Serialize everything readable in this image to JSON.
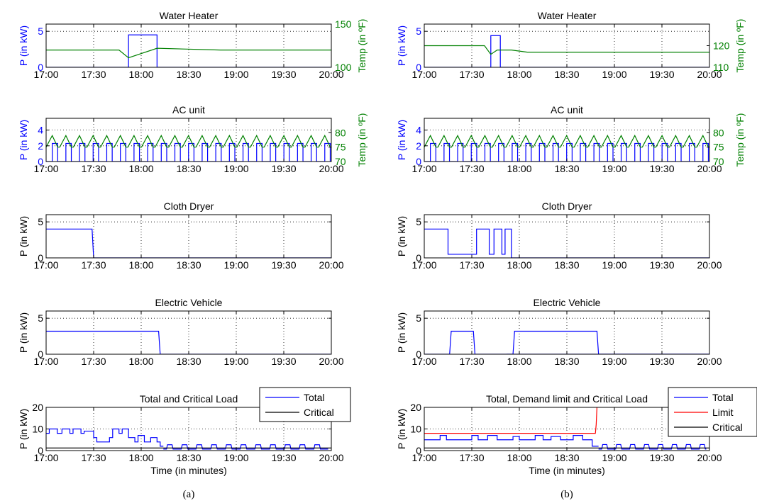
{
  "colors": {
    "power": "#0000ff",
    "temp": "#008000",
    "limit": "#ff0000",
    "critical": "#000000",
    "axis": "#000000"
  },
  "x_ticks": [
    "17:00",
    "17:30",
    "18:00",
    "18:30",
    "19:00",
    "19:30",
    "20:00"
  ],
  "panels": [
    {
      "caption": "(a)",
      "chart_data": [
        {
          "type": "line",
          "title": "Water Heater",
          "ylabel": "P (in kW)",
          "y2label": "Temp (in ºF)",
          "xlim": [
            0,
            180
          ],
          "ylim": [
            0,
            6
          ],
          "y2lim": [
            100,
            150
          ],
          "yticks": [
            0,
            5
          ],
          "y2ticks": [
            100,
            150
          ],
          "grid": true,
          "series": [
            {
              "axis": "left",
              "color": "power",
              "x": [
                0,
                52,
                52,
                70,
                70,
                180
              ],
              "y": [
                0,
                0,
                4.5,
                4.5,
                0,
                0
              ]
            },
            {
              "axis": "right",
              "color": "temp",
              "x": [
                0,
                46,
                52,
                70,
                110,
                180
              ],
              "y": [
                120,
                120,
                111,
                122,
                120,
                120
              ]
            }
          ]
        },
        {
          "type": "line",
          "title": "AC unit",
          "ylabel": "P (in kW)",
          "y2label": "Temp (in ºF)",
          "xlim": [
            0,
            180
          ],
          "ylim": [
            0,
            5.5
          ],
          "y2lim": [
            70,
            85
          ],
          "yticks": [
            0,
            2,
            4
          ],
          "y2ticks": [
            70,
            75,
            80
          ],
          "grid": true,
          "ac_cycle": {
            "period_min": 8.6,
            "on_fraction": 0.4,
            "on_power_kw": 2.3,
            "temp_low": 75,
            "temp_high": 79
          }
        },
        {
          "type": "line",
          "title": "Cloth Dryer",
          "ylabel": "P (in kW)",
          "xlim": [
            0,
            180
          ],
          "ylim": [
            0,
            6
          ],
          "yticks": [
            0,
            5
          ],
          "grid": true,
          "series": [
            {
              "axis": "left",
              "color": "power",
              "x": [
                0,
                29,
                29.5,
                30,
                180
              ],
              "y": [
                4,
                4,
                2,
                0,
                0
              ]
            }
          ]
        },
        {
          "type": "line",
          "title": "Electric Vehicle",
          "ylabel": "P (in kW)",
          "xlim": [
            0,
            180
          ],
          "ylim": [
            0,
            6
          ],
          "yticks": [
            0,
            5
          ],
          "grid": true,
          "series": [
            {
              "axis": "left",
              "color": "power",
              "x": [
                0,
                71,
                72,
                180
              ],
              "y": [
                3.2,
                3.2,
                0,
                0
              ]
            }
          ]
        },
        {
          "type": "line",
          "title": "Total and Critical Load",
          "ylabel": "P (in kW)",
          "xlabel": "Time (in minutes)",
          "xlim": [
            0,
            180
          ],
          "ylim": [
            0,
            20
          ],
          "yticks": [
            0,
            10,
            20
          ],
          "grid": true,
          "legend": {
            "position": "top-right",
            "entries": [
              {
                "label": "Total",
                "color": "power"
              },
              {
                "label": "Critical",
                "color": "critical"
              }
            ]
          },
          "series": [
            {
              "axis": "left",
              "color": "power",
              "x": [
                0,
                2,
                2,
                7,
                7,
                10,
                10,
                15,
                15,
                17,
                17,
                22,
                22,
                24,
                24,
                30,
                30,
                32,
                32,
                40,
                40,
                42,
                42,
                46,
                46,
                48,
                48,
                52,
                52,
                56,
                56,
                58,
                58,
                62,
                62,
                66,
                66,
                70,
                70,
                72,
                72,
                74
              ],
              "y": [
                8,
                8,
                10,
                10,
                8,
                8,
                10,
                10,
                8,
                8,
                10,
                10,
                8,
                8,
                9,
                9,
                6,
                6,
                4,
                4,
                6,
                6,
                10,
                10,
                8,
                8,
                10,
                10,
                6,
                6,
                4,
                4,
                7,
                7,
                4,
                4,
                6,
                6,
                4,
                4,
                2,
                2
              ]
            },
            {
              "axis": "left",
              "color": "power",
              "periodic": {
                "from": 74,
                "to": 178,
                "period": 9.3,
                "width": 3.5,
                "low": 0.7,
                "high": 2.7
              }
            },
            {
              "axis": "left",
              "color": "critical",
              "x": [
                0,
                180
              ],
              "y": [
                1.2,
                1.2
              ]
            }
          ]
        }
      ]
    },
    {
      "caption": "(b)",
      "chart_data": [
        {
          "type": "line",
          "title": "Water Heater",
          "ylabel": "P (in kW)",
          "y2label": "Temp (in ºF)",
          "xlim": [
            0,
            180
          ],
          "ylim": [
            0,
            6
          ],
          "y2lim": [
            110,
            130
          ],
          "yticks": [
            0,
            5
          ],
          "y2ticks": [
            110,
            120
          ],
          "grid": true,
          "series": [
            {
              "axis": "left",
              "color": "power",
              "x": [
                0,
                42,
                42,
                48,
                48,
                180
              ],
              "y": [
                0,
                0,
                4.4,
                4.4,
                0,
                0
              ]
            },
            {
              "axis": "right",
              "color": "temp",
              "x": [
                0,
                38,
                42,
                46,
                55,
                65,
                180
              ],
              "y": [
                120,
                120,
                116,
                118,
                118,
                117,
                117
              ]
            }
          ]
        },
        {
          "type": "line",
          "title": "AC unit",
          "ylabel": "P (in kW)",
          "y2label": "Temp (in ºF)",
          "xlim": [
            0,
            180
          ],
          "ylim": [
            0,
            5.5
          ],
          "y2lim": [
            70,
            85
          ],
          "yticks": [
            0,
            2,
            4
          ],
          "y2ticks": [
            70,
            75,
            80
          ],
          "grid": true,
          "ac_cycle": {
            "period_min": 8.6,
            "on_fraction": 0.4,
            "on_power_kw": 2.3,
            "temp_low": 75,
            "temp_high": 79
          }
        },
        {
          "type": "line",
          "title": "Cloth Dryer",
          "ylabel": "P (in kW)",
          "xlim": [
            0,
            180
          ],
          "ylim": [
            0,
            6
          ],
          "yticks": [
            0,
            5
          ],
          "grid": true,
          "series": [
            {
              "axis": "left",
              "color": "power",
              "x": [
                0,
                15,
                15,
                33,
                33,
                41,
                41,
                44,
                44,
                49,
                49,
                51,
                51,
                55,
                55,
                180
              ],
              "y": [
                4,
                4,
                0.5,
                0.5,
                4,
                4,
                0.5,
                0.5,
                4,
                4,
                0.5,
                0.5,
                4,
                4,
                0,
                0
              ]
            }
          ]
        },
        {
          "type": "line",
          "title": "Electric Vehicle",
          "ylabel": "P (in kW)",
          "xlim": [
            0,
            180
          ],
          "ylim": [
            0,
            6
          ],
          "yticks": [
            0,
            5
          ],
          "grid": true,
          "series": [
            {
              "axis": "left",
              "color": "power",
              "x": [
                0,
                16,
                17,
                31,
                32,
                180
              ],
              "y": [
                0,
                0,
                3.2,
                3.2,
                0,
                0
              ]
            },
            {
              "axis": "left",
              "color": "power",
              "x": [
                52,
                56,
                57,
                109,
                110,
                180
              ],
              "y": [
                0,
                0,
                3.2,
                3.2,
                0,
                0
              ]
            }
          ]
        },
        {
          "type": "line",
          "title": "Total, Demand limit and Critical Load",
          "ylabel": "P (in kW)",
          "xlabel": "Time (in minutes)",
          "xlim": [
            0,
            180
          ],
          "ylim": [
            0,
            20
          ],
          "yticks": [
            0,
            10,
            20
          ],
          "grid": true,
          "legend": {
            "position": "top-right",
            "entries": [
              {
                "label": "Total",
                "color": "power"
              },
              {
                "label": "Limit",
                "color": "limit"
              },
              {
                "label": "Critical",
                "color": "critical"
              }
            ]
          },
          "series": [
            {
              "axis": "left",
              "color": "power",
              "x": [
                0,
                10,
                10,
                14,
                14,
                30,
                30,
                34,
                34,
                40,
                40,
                46,
                46,
                56,
                56,
                60,
                60,
                70,
                70,
                75,
                75,
                80,
                80,
                86,
                86,
                94,
                94,
                100,
                100,
                106,
                106,
                110
              ],
              "y": [
                5,
                5,
                7,
                7,
                5,
                5,
                7,
                7,
                5,
                5,
                7,
                7,
                5,
                5,
                6.5,
                6.5,
                5,
                5,
                7,
                7,
                5,
                5,
                6.5,
                6.5,
                5,
                5,
                7,
                7,
                5,
                5,
                2,
                2
              ]
            },
            {
              "axis": "left",
              "color": "power",
              "periodic": {
                "from": 110,
                "to": 178,
                "period": 8.8,
                "width": 3.2,
                "low": 0.7,
                "high": 2.8
              }
            },
            {
              "axis": "left",
              "color": "limit",
              "x": [
                0,
                108,
                108.5,
                109
              ],
              "y": [
                8,
                8,
                12,
                20
              ]
            },
            {
              "axis": "left",
              "color": "critical",
              "x": [
                0,
                180
              ],
              "y": [
                1.2,
                1.2
              ]
            }
          ]
        }
      ]
    }
  ]
}
